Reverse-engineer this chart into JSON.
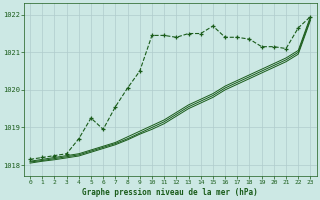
{
  "title": "Graphe pression niveau de la mer (hPa)",
  "bg_color": "#cce8e4",
  "line_color": "#1a5c1a",
  "grid_color": "#b0cccc",
  "text_color": "#1a5c1a",
  "xlim": [
    -0.5,
    23.5
  ],
  "ylim": [
    1017.7,
    1022.3
  ],
  "yticks": [
    1018,
    1019,
    1020,
    1021,
    1022
  ],
  "xticks": [
    0,
    1,
    2,
    3,
    4,
    5,
    6,
    7,
    8,
    9,
    10,
    11,
    12,
    13,
    14,
    15,
    16,
    17,
    18,
    19,
    20,
    21,
    22,
    23
  ],
  "series1_x": [
    0,
    1,
    2,
    3,
    4,
    5,
    6,
    7,
    8,
    9,
    10,
    11,
    12,
    13,
    14,
    15,
    16,
    17,
    18,
    19,
    20,
    21,
    22,
    23
  ],
  "series1_y": [
    1018.15,
    1018.2,
    1018.25,
    1018.3,
    1018.7,
    1019.25,
    1018.95,
    1019.55,
    1020.05,
    1020.5,
    1021.45,
    1021.45,
    1021.4,
    1021.5,
    1021.5,
    1021.7,
    1021.4,
    1021.4,
    1021.35,
    1021.15,
    1021.15,
    1021.1,
    1021.65,
    1021.95
  ],
  "series2_x": [
    0,
    1,
    2,
    3,
    4,
    5,
    6,
    7,
    8,
    9,
    10,
    11,
    12,
    13,
    14,
    15,
    16,
    17,
    18,
    19,
    20,
    21,
    22,
    23
  ],
  "series2_y": [
    1018.1,
    1018.15,
    1018.2,
    1018.25,
    1018.3,
    1018.4,
    1018.5,
    1018.6,
    1018.75,
    1018.9,
    1019.05,
    1019.2,
    1019.4,
    1019.6,
    1019.75,
    1019.9,
    1020.1,
    1020.25,
    1020.4,
    1020.55,
    1020.7,
    1020.85,
    1021.05,
    1021.95
  ],
  "series3_x": [
    0,
    1,
    2,
    3,
    4,
    5,
    6,
    7,
    8,
    9,
    10,
    11,
    12,
    13,
    14,
    15,
    16,
    17,
    18,
    19,
    20,
    21,
    22,
    23
  ],
  "series3_y": [
    1018.08,
    1018.12,
    1018.17,
    1018.22,
    1018.27,
    1018.37,
    1018.47,
    1018.57,
    1018.7,
    1018.85,
    1019.0,
    1019.15,
    1019.35,
    1019.55,
    1019.7,
    1019.85,
    1020.05,
    1020.2,
    1020.35,
    1020.5,
    1020.65,
    1020.8,
    1021.0,
    1021.9
  ],
  "series4_x": [
    0,
    1,
    2,
    3,
    4,
    5,
    6,
    7,
    8,
    9,
    10,
    11,
    12,
    13,
    14,
    15,
    16,
    17,
    18,
    19,
    20,
    21,
    22,
    23
  ],
  "series4_y": [
    1018.05,
    1018.1,
    1018.14,
    1018.19,
    1018.24,
    1018.34,
    1018.44,
    1018.54,
    1018.67,
    1018.82,
    1018.95,
    1019.1,
    1019.3,
    1019.5,
    1019.65,
    1019.8,
    1020.0,
    1020.15,
    1020.3,
    1020.45,
    1020.6,
    1020.75,
    1020.95,
    1021.85
  ]
}
